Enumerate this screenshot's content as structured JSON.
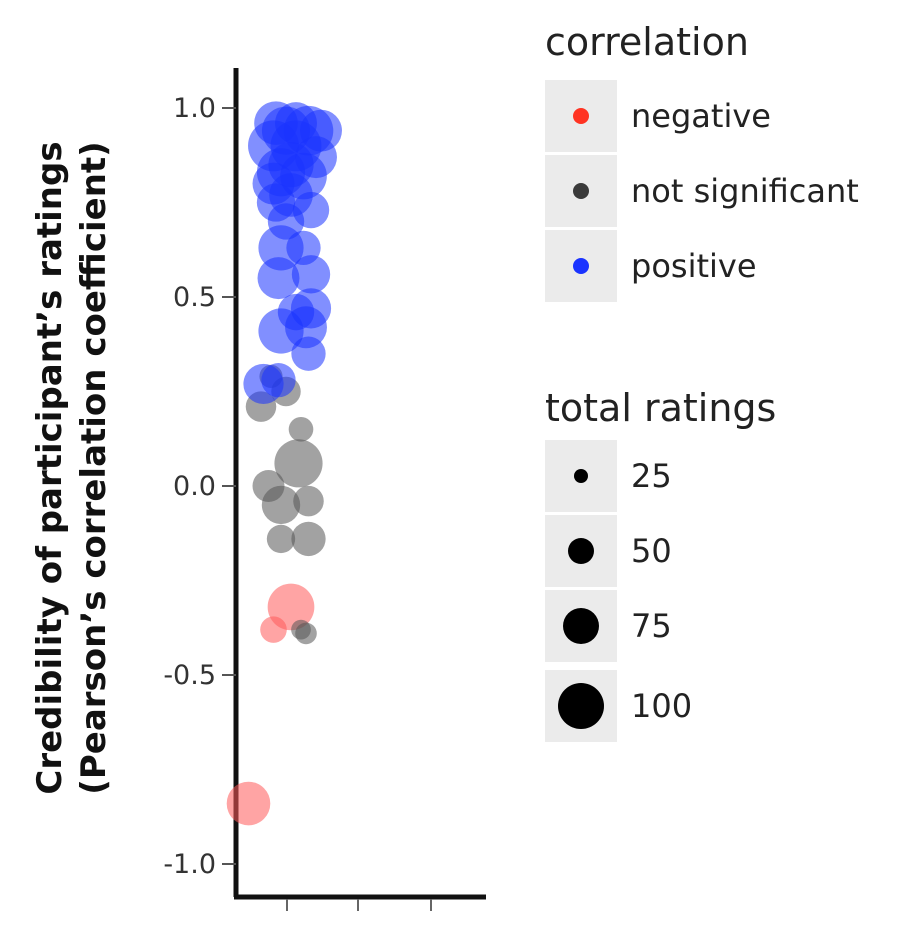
{
  "chart_data": {
    "type": "scatter",
    "ylabel_line1": "Credibility of participant’s ratings",
    "ylabel_line2": "(Pearson’s correlation coefficient)",
    "ylim": [
      -1.0,
      1.0
    ],
    "yticks": [
      "-1.0",
      "-0.5",
      "0.0",
      "0.5",
      "1.0"
    ],
    "ytick_values": [
      -1.0,
      -0.5,
      0.0,
      0.5,
      1.0
    ],
    "xtick_count": 3,
    "grid": false,
    "colors": {
      "negative": "#ff5a5a",
      "not significant": "#555555",
      "positive": "#1a33ff"
    },
    "points": [
      {
        "x": 0.05,
        "y": -0.84,
        "n": 55,
        "group": "negative"
      },
      {
        "x": 0.22,
        "y": -0.32,
        "n": 65,
        "group": "negative"
      },
      {
        "x": 0.15,
        "y": -0.38,
        "n": 15,
        "group": "negative"
      },
      {
        "x": 0.28,
        "y": -0.39,
        "n": 8,
        "group": "not significant"
      },
      {
        "x": 0.26,
        "y": -0.38,
        "n": 6,
        "group": "not significant"
      },
      {
        "x": 0.18,
        "y": -0.14,
        "n": 18,
        "group": "not significant"
      },
      {
        "x": 0.29,
        "y": -0.14,
        "n": 30,
        "group": "not significant"
      },
      {
        "x": 0.18,
        "y": -0.05,
        "n": 40,
        "group": "not significant"
      },
      {
        "x": 0.29,
        "y": -0.04,
        "n": 22,
        "group": "not significant"
      },
      {
        "x": 0.25,
        "y": 0.06,
        "n": 70,
        "group": "not significant"
      },
      {
        "x": 0.13,
        "y": 0.0,
        "n": 25,
        "group": "not significant"
      },
      {
        "x": 0.26,
        "y": 0.15,
        "n": 12,
        "group": "not significant"
      },
      {
        "x": 0.1,
        "y": 0.21,
        "n": 22,
        "group": "not significant"
      },
      {
        "x": 0.2,
        "y": 0.25,
        "n": 20,
        "group": "not significant"
      },
      {
        "x": 0.14,
        "y": 0.29,
        "n": 10,
        "group": "not significant"
      },
      {
        "x": 0.11,
        "y": 0.27,
        "n": 45,
        "group": "positive"
      },
      {
        "x": 0.17,
        "y": 0.28,
        "n": 30,
        "group": "positive"
      },
      {
        "x": 0.29,
        "y": 0.35,
        "n": 30,
        "group": "positive"
      },
      {
        "x": 0.18,
        "y": 0.41,
        "n": 60,
        "group": "positive"
      },
      {
        "x": 0.28,
        "y": 0.42,
        "n": 50,
        "group": "positive"
      },
      {
        "x": 0.3,
        "y": 0.47,
        "n": 45,
        "group": "positive"
      },
      {
        "x": 0.24,
        "y": 0.46,
        "n": 35,
        "group": "positive"
      },
      {
        "x": 0.3,
        "y": 0.56,
        "n": 40,
        "group": "positive"
      },
      {
        "x": 0.17,
        "y": 0.55,
        "n": 50,
        "group": "positive"
      },
      {
        "x": 0.18,
        "y": 0.63,
        "n": 60,
        "group": "positive"
      },
      {
        "x": 0.27,
        "y": 0.63,
        "n": 30,
        "group": "positive"
      },
      {
        "x": 0.2,
        "y": 0.7,
        "n": 35,
        "group": "positive"
      },
      {
        "x": 0.16,
        "y": 0.75,
        "n": 40,
        "group": "positive"
      },
      {
        "x": 0.3,
        "y": 0.73,
        "n": 35,
        "group": "positive"
      },
      {
        "x": 0.22,
        "y": 0.77,
        "n": 55,
        "group": "positive"
      },
      {
        "x": 0.18,
        "y": 0.83,
        "n": 70,
        "group": "positive"
      },
      {
        "x": 0.27,
        "y": 0.82,
        "n": 65,
        "group": "positive"
      },
      {
        "x": 0.32,
        "y": 0.87,
        "n": 50,
        "group": "positive"
      },
      {
        "x": 0.15,
        "y": 0.9,
        "n": 80,
        "group": "positive"
      },
      {
        "x": 0.24,
        "y": 0.9,
        "n": 80,
        "group": "positive"
      },
      {
        "x": 0.2,
        "y": 0.94,
        "n": 70,
        "group": "positive"
      },
      {
        "x": 0.29,
        "y": 0.94,
        "n": 75,
        "group": "positive"
      },
      {
        "x": 0.34,
        "y": 0.94,
        "n": 50,
        "group": "positive"
      },
      {
        "x": 0.16,
        "y": 0.96,
        "n": 55,
        "group": "positive"
      },
      {
        "x": 0.24,
        "y": 0.96,
        "n": 50,
        "group": "positive"
      },
      {
        "x": 0.22,
        "y": 0.85,
        "n": 60,
        "group": "positive"
      },
      {
        "x": 0.15,
        "y": 0.8,
        "n": 50,
        "group": "positive"
      }
    ]
  },
  "legend_color": {
    "title": "correlation",
    "items": [
      {
        "label": "negative",
        "color": "#ff3322"
      },
      {
        "label": "not significant",
        "color": "#3a3a3a"
      },
      {
        "label": "positive",
        "color": "#1a33ff"
      }
    ]
  },
  "legend_size": {
    "title": "total ratings",
    "items": [
      {
        "label": "25",
        "value": 25
      },
      {
        "label": "50",
        "value": 50
      },
      {
        "label": "75",
        "value": 75
      },
      {
        "label": "100",
        "value": 100
      }
    ]
  }
}
